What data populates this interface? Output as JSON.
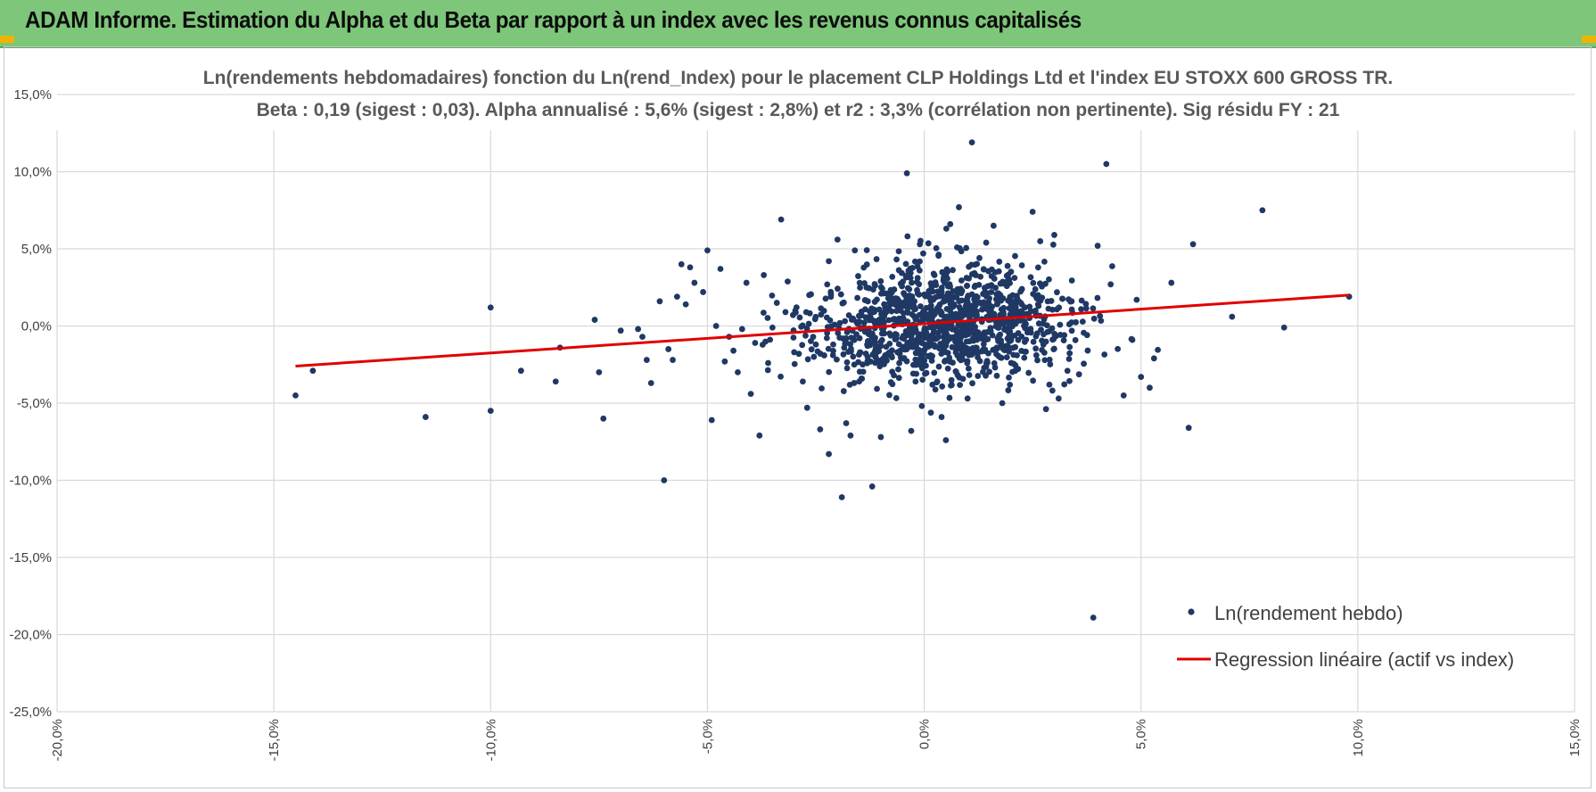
{
  "header": {
    "title": "ADAM Informe. Estimation du Alpha et du Beta par rapport à un index avec les revenus connus capitalisés"
  },
  "colors": {
    "header_bg": "#7dc67a",
    "point": "#1f3864",
    "regression": "#e00000",
    "grid": "#d9d9d9",
    "text": "#595959"
  },
  "chart_data": {
    "type": "scatter",
    "title_line1": "Ln(rendements hebdomadaires) fonction du Ln(rend_Index) pour le placement CLP Holdings Ltd et l'index EU STOXX 600 GROSS TR.",
    "title_line2": "Beta : 0,19 (sigest : 0,03).  Alpha annualisé : 5,6% (sigest : 2,8%) et r2 : 3,3% (corrélation non pertinente). Sig résidu FY : 21",
    "xlim": [
      -20,
      15
    ],
    "ylim": [
      -25,
      15
    ],
    "x_tick_values": [
      -20,
      -15,
      -10,
      -5,
      0,
      5,
      10,
      15
    ],
    "x_tick_labels": [
      "-20,0%",
      "-15,0%",
      "-10,0%",
      "-5,0%",
      "0,0%",
      "5,0%",
      "10,0%",
      "15,0%"
    ],
    "y_tick_values": [
      15,
      10,
      5,
      0,
      -5,
      -10,
      -15,
      -20,
      -25
    ],
    "y_tick_labels": [
      "15,0%",
      "10,0%",
      "5,0%",
      "0,0%",
      "-5,0%",
      "-10,0%",
      "-15,0%",
      "-20,0%",
      "-25,0%"
    ],
    "regression": {
      "beta": 0.19,
      "x_start": -14.5,
      "y_start": -2.6,
      "x_end": 9.8,
      "y_end": 2.0
    },
    "series": [
      {
        "name": "Ln(rendement hebdo)",
        "type": "scatter",
        "x": [
          -14.5,
          -14.1,
          -11.5,
          -10.0,
          -10.0,
          -9.3,
          -8.5,
          -8.4,
          -7.6,
          -7.5,
          -7.4,
          -7.0,
          -6.6,
          -6.5,
          -6.4,
          -6.3,
          -6.1,
          -6.0,
          -5.9,
          -5.8,
          -5.7,
          -5.6,
          -5.5,
          -5.4,
          -5.3,
          -5.1,
          -5.0,
          -4.9,
          -4.8,
          -4.7,
          -4.6,
          -4.5,
          -4.4,
          -4.3,
          -4.2,
          -4.1,
          -4.0,
          -3.9,
          -3.8,
          -3.7,
          -3.6,
          -3.5,
          -3.4,
          -3.3,
          -3.2,
          -3.0,
          -2.8,
          -2.7,
          -2.5,
          -2.4,
          -2.2,
          -2.2,
          -2.0,
          -1.9,
          -1.8,
          -1.7,
          -1.6,
          -1.5,
          -1.3,
          -1.2,
          -1.0,
          -1.0,
          -0.9,
          -0.4,
          -0.3,
          -0.2,
          -0.1,
          0.3,
          0.4,
          0.5,
          0.6,
          0.8,
          1.0,
          1.1,
          1.6,
          1.8,
          2.1,
          2.5,
          3.0,
          3.1,
          3.4,
          3.9,
          4.0,
          4.2,
          4.3,
          4.6,
          4.8,
          4.9,
          5.0,
          5.2,
          5.3,
          5.7,
          6.1,
          6.2,
          7.1,
          7.8,
          8.3,
          9.8
        ],
        "y": [
          -4.5,
          -2.9,
          -5.9,
          1.2,
          -5.5,
          -2.9,
          -3.6,
          -1.4,
          0.4,
          -3.0,
          -6.0,
          -0.3,
          -0.2,
          -0.7,
          -2.2,
          -3.7,
          1.6,
          -10.0,
          -1.5,
          -2.2,
          1.9,
          4.0,
          1.4,
          3.8,
          2.8,
          2.2,
          4.9,
          -6.1,
          0.0,
          3.7,
          -2.3,
          -0.7,
          -1.6,
          -3.0,
          -0.2,
          2.8,
          -4.4,
          -1.1,
          -7.1,
          3.3,
          -2.4,
          -0.1,
          1.5,
          6.9,
          0.9,
          -1.7,
          -3.6,
          -5.3,
          -1.2,
          -6.7,
          -8.3,
          4.2,
          5.6,
          -11.1,
          -6.3,
          -7.1,
          4.9,
          -3.6,
          1.6,
          -10.4,
          -7.2,
          -1.3,
          -1.9,
          9.9,
          -6.8,
          -3.6,
          5.3,
          -3.6,
          -5.9,
          -7.4,
          6.6,
          7.7,
          -4.7,
          11.9,
          6.5,
          -5.0,
          -2.9,
          7.4,
          5.9,
          -4.7,
          1.6,
          -18.9,
          5.2,
          10.5,
          2.7,
          -4.5,
          -0.9,
          1.7,
          -3.3,
          -4.0,
          -2.1,
          2.8,
          -6.6,
          5.3,
          0.6,
          7.5,
          -0.1,
          1.9
        ]
      },
      {
        "name": "Regression linéaire (actif vs index)",
        "type": "line"
      }
    ],
    "legend": {
      "position": "bottom-right",
      "entries": [
        "Ln(rendement hebdo)",
        "Regression linéaire (actif vs index)"
      ]
    }
  }
}
